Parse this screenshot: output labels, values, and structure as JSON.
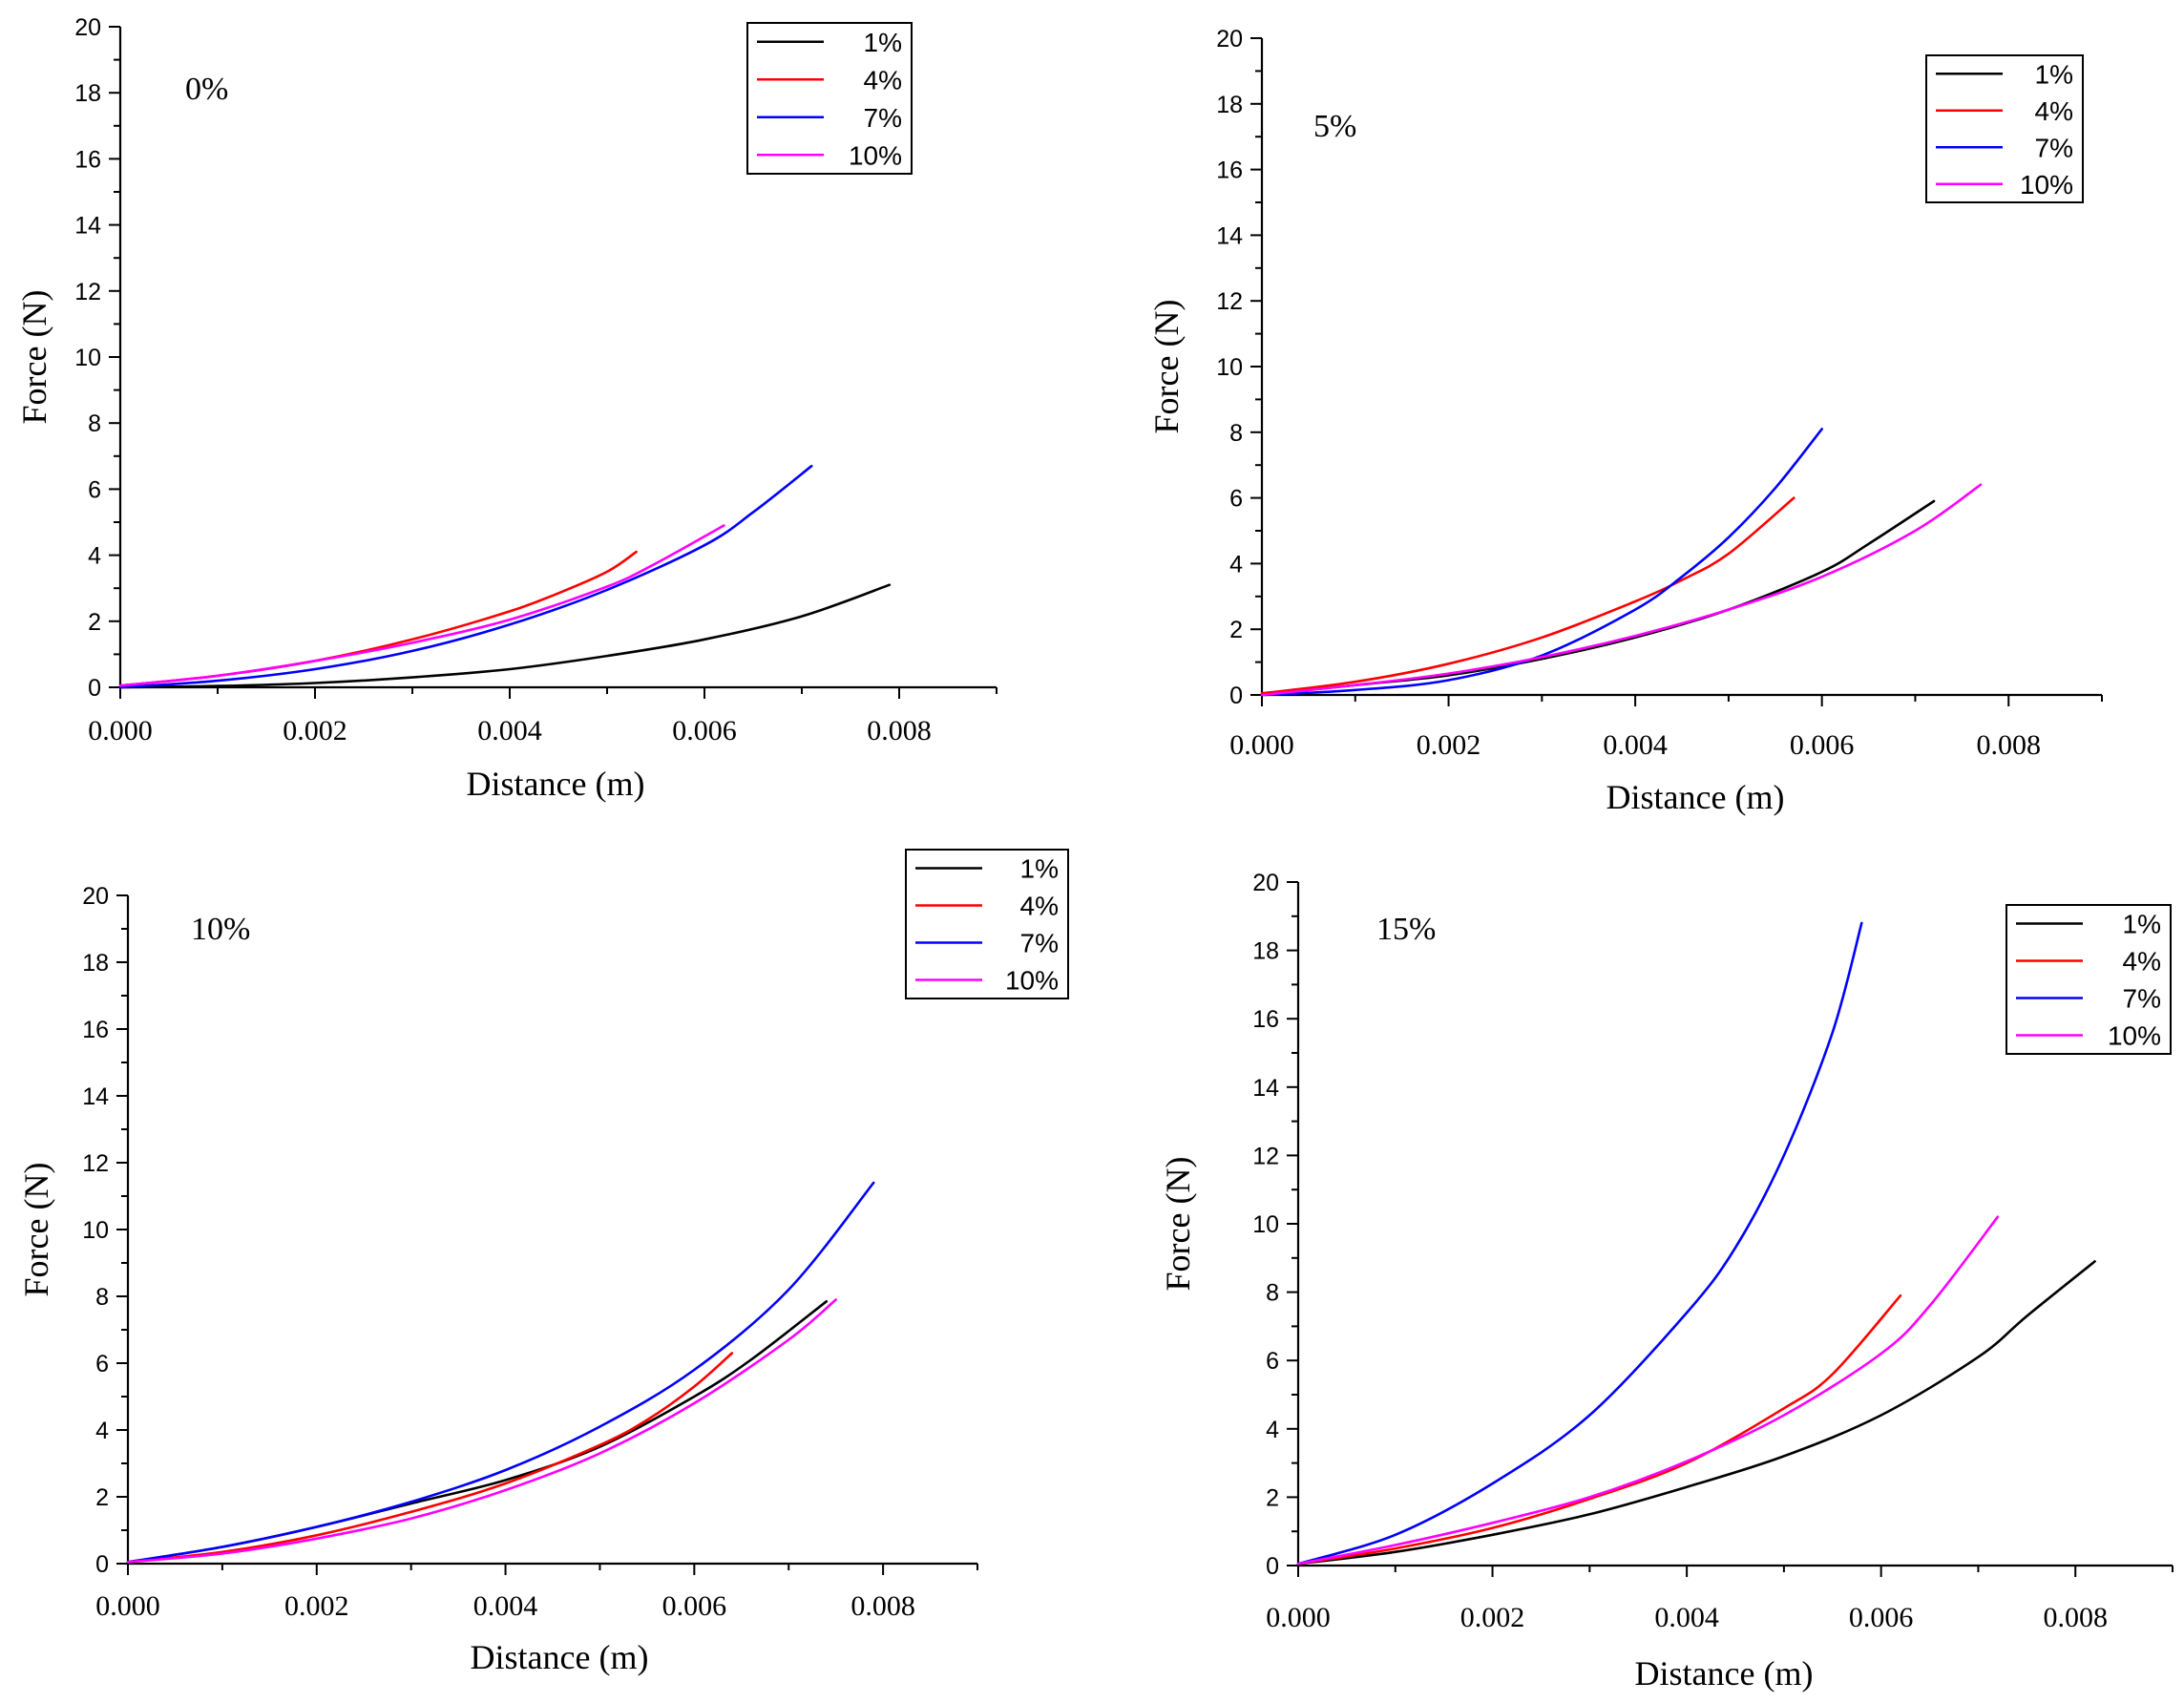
{
  "chart_data": [
    {
      "type": "line",
      "title": "0%",
      "xlabel": "Distance (m)",
      "ylabel": "Force (N)",
      "xlim": [
        0,
        0.009
      ],
      "ylim": [
        0,
        20
      ],
      "xticks": [
        "0.000",
        "0.002",
        "0.004",
        "0.006",
        "0.008"
      ],
      "yticks": [
        "0",
        "2",
        "4",
        "6",
        "8",
        "10",
        "12",
        "14",
        "16",
        "18",
        "20"
      ],
      "legend_position": "top-right",
      "series": [
        {
          "name": "1%",
          "color": "#000000",
          "x": [
            0,
            0.001,
            0.002,
            0.003,
            0.004,
            0.005,
            0.006,
            0.007,
            0.0079
          ],
          "y": [
            0,
            0.04,
            0.13,
            0.3,
            0.55,
            0.95,
            1.45,
            2.15,
            3.1
          ]
        },
        {
          "name": "4%",
          "color": "#ff0000",
          "x": [
            0,
            0.001,
            0.002,
            0.003,
            0.004,
            0.0045,
            0.005,
            0.0053
          ],
          "y": [
            0.05,
            0.35,
            0.8,
            1.45,
            2.3,
            2.85,
            3.5,
            4.1
          ]
        },
        {
          "name": "7%",
          "color": "#0000ff",
          "x": [
            0,
            0.001,
            0.002,
            0.003,
            0.004,
            0.005,
            0.006,
            0.0065,
            0.0071
          ],
          "y": [
            0,
            0.2,
            0.55,
            1.1,
            1.9,
            2.95,
            4.3,
            5.3,
            6.7
          ]
        },
        {
          "name": "10%",
          "color": "#ff00ff",
          "x": [
            0,
            0.001,
            0.002,
            0.003,
            0.004,
            0.005,
            0.0055,
            0.0062
          ],
          "y": [
            0.05,
            0.35,
            0.8,
            1.35,
            2.05,
            3.05,
            3.75,
            4.9
          ]
        }
      ]
    },
    {
      "type": "line",
      "title": "5%",
      "xlabel": "Distance (m)",
      "ylabel": "Force (N)",
      "xlim": [
        0,
        0.009
      ],
      "ylim": [
        0,
        20
      ],
      "xticks": [
        "0.000",
        "0.002",
        "0.004",
        "0.006",
        "0.008"
      ],
      "yticks": [
        "0",
        "2",
        "4",
        "6",
        "8",
        "10",
        "12",
        "14",
        "16",
        "18",
        "20"
      ],
      "legend_position": "top-right",
      "series": [
        {
          "name": "1%",
          "color": "#000000",
          "x": [
            0,
            0.001,
            0.002,
            0.003,
            0.004,
            0.005,
            0.006,
            0.0065,
            0.0072
          ],
          "y": [
            0,
            0.3,
            0.6,
            1.1,
            1.75,
            2.6,
            3.75,
            4.6,
            5.9
          ]
        },
        {
          "name": "4%",
          "color": "#ff0000",
          "x": [
            0,
            0.001,
            0.002,
            0.003,
            0.004,
            0.0045,
            0.005,
            0.0057
          ],
          "y": [
            0.05,
            0.4,
            0.95,
            1.75,
            2.85,
            3.5,
            4.3,
            6.0
          ]
        },
        {
          "name": "7%",
          "color": "#0000ff",
          "x": [
            0,
            0.001,
            0.002,
            0.003,
            0.004,
            0.0045,
            0.005,
            0.0055,
            0.006
          ],
          "y": [
            0,
            0.15,
            0.45,
            1.2,
            2.6,
            3.6,
            4.8,
            6.3,
            8.1
          ]
        },
        {
          "name": "10%",
          "color": "#ff00ff",
          "x": [
            0,
            0.001,
            0.002,
            0.003,
            0.004,
            0.005,
            0.006,
            0.007,
            0.0077
          ],
          "y": [
            0,
            0.3,
            0.65,
            1.15,
            1.8,
            2.6,
            3.6,
            5.0,
            6.4
          ]
        }
      ]
    },
    {
      "type": "line",
      "title": "10%",
      "xlabel": "Distance (m)",
      "ylabel": "Force (N)",
      "xlim": [
        0,
        0.009
      ],
      "ylim": [
        0,
        20
      ],
      "xticks": [
        "0.000",
        "0.002",
        "0.004",
        "0.006",
        "0.008"
      ],
      "yticks": [
        "0",
        "2",
        "4",
        "6",
        "8",
        "10",
        "12",
        "14",
        "16",
        "18",
        "20"
      ],
      "legend_position": "top-right",
      "series": [
        {
          "name": "1%",
          "color": "#000000",
          "x": [
            0,
            0.001,
            0.002,
            0.003,
            0.004,
            0.005,
            0.006,
            0.0066,
            0.0074
          ],
          "y": [
            0.05,
            0.5,
            1.1,
            1.8,
            2.5,
            3.5,
            5.0,
            6.1,
            7.85
          ]
        },
        {
          "name": "4%",
          "color": "#ff0000",
          "x": [
            0,
            0.001,
            0.002,
            0.003,
            0.004,
            0.005,
            0.0055,
            0.006,
            0.0064
          ],
          "y": [
            0.05,
            0.35,
            0.85,
            1.55,
            2.4,
            3.55,
            4.3,
            5.3,
            6.3
          ]
        },
        {
          "name": "7%",
          "color": "#0000ff",
          "x": [
            0,
            0.001,
            0.002,
            0.003,
            0.004,
            0.005,
            0.006,
            0.007,
            0.0079
          ],
          "y": [
            0.05,
            0.5,
            1.1,
            1.85,
            2.8,
            4.1,
            5.8,
            8.2,
            11.4
          ]
        },
        {
          "name": "10%",
          "color": "#ff00ff",
          "x": [
            0,
            0.001,
            0.002,
            0.003,
            0.004,
            0.005,
            0.006,
            0.007,
            0.0075
          ],
          "y": [
            0.05,
            0.3,
            0.75,
            1.35,
            2.2,
            3.3,
            4.8,
            6.7,
            7.9
          ]
        }
      ]
    },
    {
      "type": "line",
      "title": "15%",
      "xlabel": "Distance (m)",
      "ylabel": "Force (N)",
      "xlim": [
        0,
        0.009
      ],
      "ylim": [
        0,
        20
      ],
      "xticks": [
        "0.000",
        "0.002",
        "0.004",
        "0.006",
        "0.008"
      ],
      "yticks": [
        "0",
        "2",
        "4",
        "6",
        "8",
        "10",
        "12",
        "14",
        "16",
        "18",
        "20"
      ],
      "legend_position": "top-right",
      "series": [
        {
          "name": "1%",
          "color": "#000000",
          "x": [
            0,
            0.001,
            0.002,
            0.003,
            0.004,
            0.005,
            0.006,
            0.007,
            0.0075,
            0.0082
          ],
          "y": [
            0.05,
            0.4,
            0.9,
            1.5,
            2.3,
            3.2,
            4.4,
            6.1,
            7.3,
            8.9
          ]
        },
        {
          "name": "4%",
          "color": "#ff0000",
          "x": [
            0,
            0.001,
            0.002,
            0.003,
            0.004,
            0.005,
            0.0055,
            0.0062
          ],
          "y": [
            0.05,
            0.5,
            1.1,
            1.95,
            3.0,
            4.6,
            5.6,
            7.9
          ]
        },
        {
          "name": "7%",
          "color": "#0000ff",
          "x": [
            0,
            0.001,
            0.002,
            0.003,
            0.004,
            0.0045,
            0.005,
            0.0055,
            0.0058
          ],
          "y": [
            0.05,
            0.9,
            2.4,
            4.4,
            7.4,
            9.3,
            12.0,
            15.6,
            18.8
          ]
        },
        {
          "name": "10%",
          "color": "#ff00ff",
          "x": [
            0,
            0.001,
            0.002,
            0.003,
            0.004,
            0.005,
            0.006,
            0.0065,
            0.0072
          ],
          "y": [
            0.05,
            0.6,
            1.25,
            2.0,
            3.05,
            4.4,
            6.2,
            7.6,
            10.2
          ]
        }
      ]
    }
  ]
}
